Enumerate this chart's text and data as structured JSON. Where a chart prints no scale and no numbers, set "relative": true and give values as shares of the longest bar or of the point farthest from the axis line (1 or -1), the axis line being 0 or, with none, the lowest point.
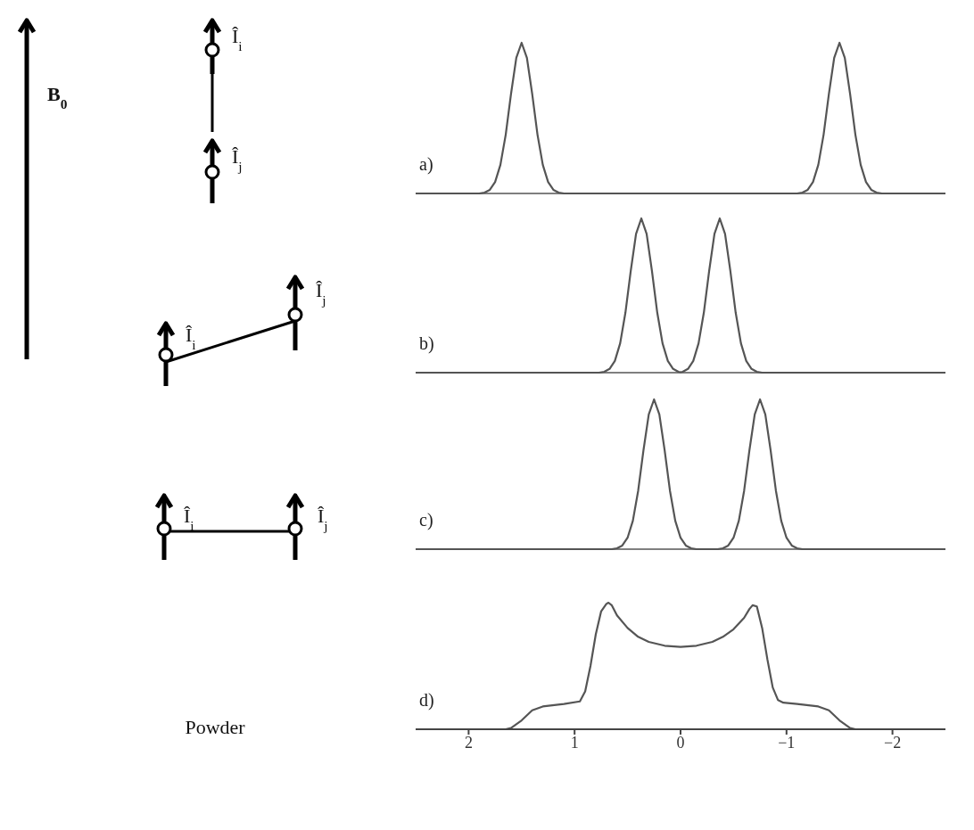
{
  "chart_data": [
    {
      "type": "line",
      "relative": true,
      "color": "#555555",
      "xlim": [
        2.5,
        -2.5
      ],
      "xticks": [
        2,
        1,
        0,
        -1,
        -2
      ],
      "tick_labels": false,
      "annotations": [
        "a)",
        "B$_{0}$",
        "Î$_{i}$",
        "Î$_{j}$"
      ],
      "x": [
        2.5,
        1.9,
        1.85,
        1.8,
        1.75,
        1.7,
        1.65,
        1.6,
        1.55,
        1.5,
        1.45,
        1.4,
        1.35,
        1.3,
        1.25,
        1.2,
        1.15,
        1.1,
        -1.1,
        -1.15,
        -1.2,
        -1.25,
        -1.3,
        -1.35,
        -1.4,
        -1.45,
        -1.5,
        -1.55,
        -1.6,
        -1.65,
        -1.7,
        -1.75,
        -1.8,
        -1.85,
        -1.9,
        -2.5
      ],
      "values": [
        0,
        0,
        0.006,
        0.024,
        0.076,
        0.19,
        0.39,
        0.66,
        0.9,
        1,
        0.9,
        0.66,
        0.39,
        0.19,
        0.076,
        0.024,
        0.006,
        0,
        0,
        0.006,
        0.024,
        0.076,
        0.19,
        0.39,
        0.66,
        0.9,
        1,
        0.9,
        0.66,
        0.39,
        0.19,
        0.076,
        0.024,
        0.006,
        0,
        0
      ]
    },
    {
      "type": "line",
      "relative": true,
      "color": "#555555",
      "xlim": [
        2.5,
        -2.5
      ],
      "xticks": [
        2,
        1,
        0,
        -1,
        -2
      ],
      "tick_labels": false,
      "annotations": [
        "b)",
        "Î$_{i}$",
        "Î$_{j}$"
      ],
      "x": [
        2.5,
        0.77,
        0.72,
        0.67,
        0.62,
        0.57,
        0.52,
        0.47,
        0.42,
        0.37,
        0.32,
        0.27,
        0.22,
        0.17,
        0.12,
        0.07,
        0.02,
        0,
        -0.02,
        -0.07,
        -0.12,
        -0.17,
        -0.22,
        -0.27,
        -0.32,
        -0.37,
        -0.42,
        -0.47,
        -0.52,
        -0.57,
        -0.62,
        -0.67,
        -0.72,
        -0.77,
        -2.5
      ],
      "values": [
        0,
        0,
        0.006,
        0.024,
        0.076,
        0.19,
        0.39,
        0.66,
        0.9,
        1,
        0.9,
        0.66,
        0.39,
        0.19,
        0.076,
        0.024,
        0.006,
        0.003,
        0.006,
        0.024,
        0.076,
        0.19,
        0.39,
        0.66,
        0.9,
        1,
        0.9,
        0.66,
        0.39,
        0.19,
        0.076,
        0.024,
        0.006,
        0,
        0
      ]
    },
    {
      "type": "line",
      "relative": true,
      "color": "#555555",
      "xlim": [
        2.5,
        -2.5
      ],
      "xticks": [
        2,
        1,
        0,
        -1,
        -2
      ],
      "tick_labels": false,
      "annotations": [
        "c)",
        "Î$_{i}$",
        "Î$_{j}$"
      ],
      "x": [
        2.5,
        0.65,
        0.6,
        0.55,
        0.5,
        0.45,
        0.4,
        0.35,
        0.3,
        0.25,
        0.2,
        0.15,
        0.1,
        0.05,
        0,
        -0.05,
        -0.1,
        -0.15,
        -0.35,
        -0.4,
        -0.45,
        -0.5,
        -0.55,
        -0.6,
        -0.65,
        -0.7,
        -0.75,
        -0.8,
        -0.85,
        -0.9,
        -0.95,
        -1,
        -1.05,
        -1.1,
        -1.15,
        -2.5
      ],
      "values": [
        0,
        0,
        0.006,
        0.024,
        0.076,
        0.19,
        0.39,
        0.66,
        0.9,
        1,
        0.9,
        0.66,
        0.39,
        0.19,
        0.076,
        0.024,
        0.006,
        0,
        0,
        0.006,
        0.024,
        0.076,
        0.19,
        0.39,
        0.66,
        0.9,
        1,
        0.9,
        0.66,
        0.39,
        0.19,
        0.076,
        0.024,
        0.006,
        0,
        0
      ]
    },
    {
      "type": "line",
      "relative": true,
      "color": "#555555",
      "xlim": [
        2.5,
        -2.5
      ],
      "xticks": [
        2,
        1,
        0,
        -1,
        -2
      ],
      "tick_labels": "x",
      "annotations": [
        "d)",
        "Powder"
      ],
      "x": [
        2.5,
        1.65,
        1.6,
        1.5,
        1.4,
        1.3,
        1.1,
        0.95,
        0.9,
        0.85,
        0.8,
        0.75,
        0.7,
        0.68,
        0.65,
        0.6,
        0.5,
        0.4,
        0.3,
        0.15,
        0,
        -0.15,
        -0.3,
        -0.4,
        -0.5,
        -0.6,
        -0.65,
        -0.68,
        -0.72,
        -0.77,
        -0.82,
        -0.87,
        -0.92,
        -0.97,
        -1.1,
        -1.3,
        -1.4,
        -1.5,
        -1.6,
        -1.65,
        -2.5
      ],
      "values": [
        0,
        0,
        0.01,
        0.07,
        0.15,
        0.18,
        0.2,
        0.22,
        0.3,
        0.5,
        0.75,
        0.93,
        0.99,
        1,
        0.98,
        0.9,
        0.8,
        0.73,
        0.69,
        0.66,
        0.65,
        0.66,
        0.69,
        0.73,
        0.79,
        0.88,
        0.95,
        0.98,
        0.97,
        0.8,
        0.55,
        0.33,
        0.23,
        0.21,
        0.2,
        0.18,
        0.15,
        0.07,
        0.01,
        0,
        0
      ]
    }
  ]
}
